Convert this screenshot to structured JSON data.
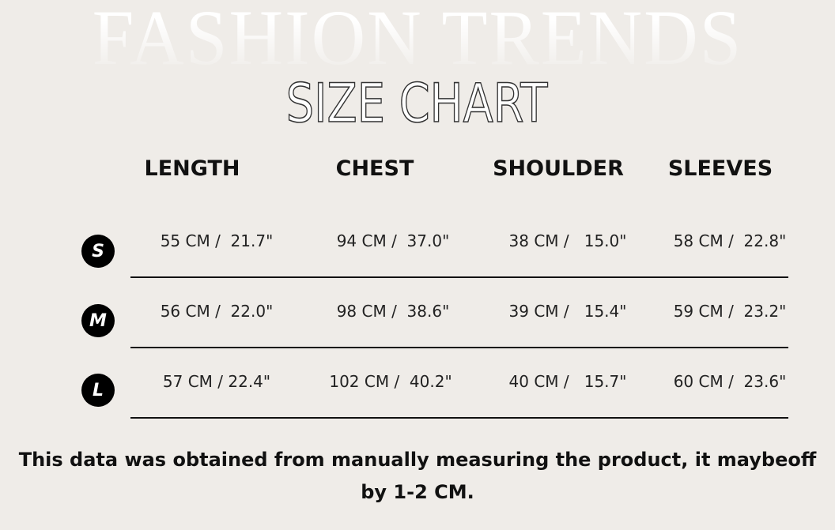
{
  "background_title": "FASHION TRENDS",
  "title": "SIZE CHART",
  "columns": [
    "LENGTH",
    "CHEST",
    "SHOULDER",
    "SLEEVES"
  ],
  "rows": [
    {
      "size": "S",
      "values": [
        "55 CM /  21.7\"",
        "94 CM /  37.0\"",
        "38 CM /   15.0\"",
        "58 CM /  22.8\""
      ]
    },
    {
      "size": "M",
      "values": [
        "56 CM /  22.0\"",
        "98 CM /  38.6\"",
        "39 CM /   15.4\"",
        "59 CM /  23.2\""
      ]
    },
    {
      "size": "L",
      "values": [
        "57 CM / 22.4\"",
        "102 CM /  40.2\"",
        "40 CM /   15.7\"",
        "60 CM /  23.6\""
      ]
    }
  ],
  "note_line1": "This data was obtained from manually measuring the product, it maybeoff",
  "note_line2": "by 1-2 CM.",
  "colors": {
    "background": "#efece8",
    "text": "#111111",
    "badge": "#000000"
  }
}
